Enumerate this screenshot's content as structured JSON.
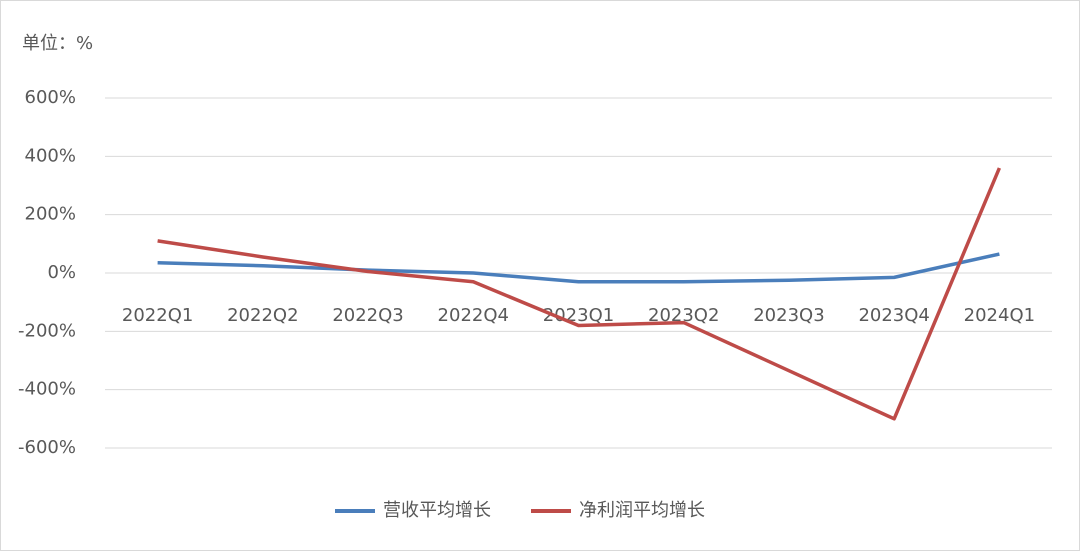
{
  "chart_data": {
    "type": "line",
    "y_label": "单位：%",
    "categories": [
      "2022Q1",
      "2022Q2",
      "2022Q3",
      "2022Q4",
      "2023Q1",
      "2023Q2",
      "2023Q3",
      "2023Q4",
      "2024Q1"
    ],
    "series": [
      {
        "name": "营收平均增长",
        "color": "#4a7ebb",
        "values": [
          35,
          25,
          10,
          0,
          -30,
          -30,
          -25,
          -15,
          65
        ]
      },
      {
        "name": "净利润平均增长",
        "color": "#be4b48",
        "values": [
          110,
          55,
          5,
          -30,
          -180,
          -170,
          -335,
          -500,
          360
        ]
      }
    ],
    "ylim": [
      -600,
      600
    ],
    "yticks": [
      {
        "value": 600,
        "label": "600%"
      },
      {
        "value": 400,
        "label": "400%"
      },
      {
        "value": 200,
        "label": "200%"
      },
      {
        "value": 0,
        "label": "0%"
      },
      {
        "value": -200,
        "label": "-200%"
      },
      {
        "value": -400,
        "label": "-400%"
      },
      {
        "value": -600,
        "label": "-600%"
      }
    ],
    "grid": true
  }
}
